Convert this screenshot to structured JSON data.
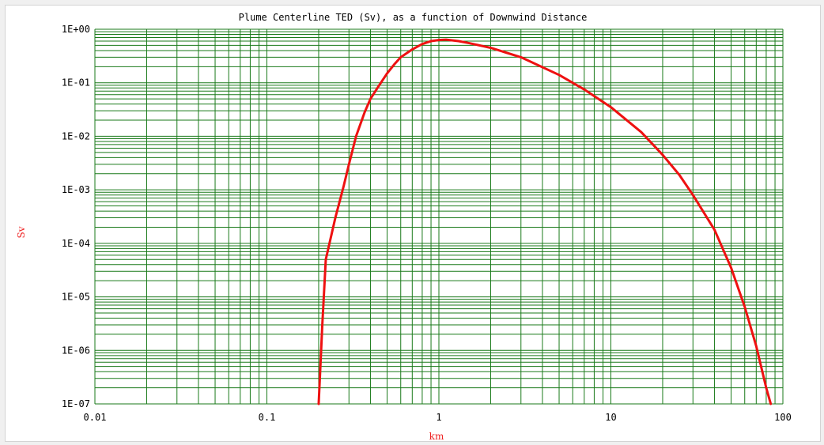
{
  "chart_data": {
    "type": "line",
    "title": "Plume Centerline TED (Sv), as a function of Downwind Distance",
    "xlabel": "km",
    "ylabel": "Sv",
    "xscale": "log",
    "yscale": "log",
    "xlim": [
      0.01,
      100
    ],
    "ylim": [
      1e-07,
      1
    ],
    "x_tick_labels": [
      "0.01",
      "0.1",
      "1",
      "10",
      "100"
    ],
    "y_tick_labels": [
      "1E+00",
      "1E-01",
      "1E-02",
      "1E-03",
      "1E-04",
      "1E-05",
      "1E-06",
      "1E-07"
    ],
    "grid": true,
    "legend": "none",
    "colors": {
      "grid": "#1a7a1a",
      "series": "#ee1111",
      "axis_labels": "#ee2222"
    },
    "series": [
      {
        "x": [
          0.2,
          0.21,
          0.22,
          0.25,
          0.28,
          0.3,
          0.33,
          0.37,
          0.4,
          0.45,
          0.5,
          0.55,
          0.6,
          0.7,
          0.8,
          0.9,
          1.0,
          1.1,
          1.3,
          1.5,
          2,
          3,
          5,
          7,
          10,
          15,
          20,
          25,
          30,
          40,
          50,
          60,
          70,
          80,
          85
        ],
        "y": [
          1e-07,
          3e-06,
          5e-05,
          0.0003,
          0.0012,
          0.003,
          0.01,
          0.028,
          0.05,
          0.09,
          0.15,
          0.22,
          0.3,
          0.42,
          0.53,
          0.6,
          0.63,
          0.64,
          0.6,
          0.55,
          0.45,
          0.3,
          0.14,
          0.075,
          0.035,
          0.012,
          0.0045,
          0.0019,
          0.0008,
          0.00018,
          3.5e-05,
          6.5e-06,
          1.2e-06,
          2e-07,
          1e-07
        ]
      }
    ]
  }
}
